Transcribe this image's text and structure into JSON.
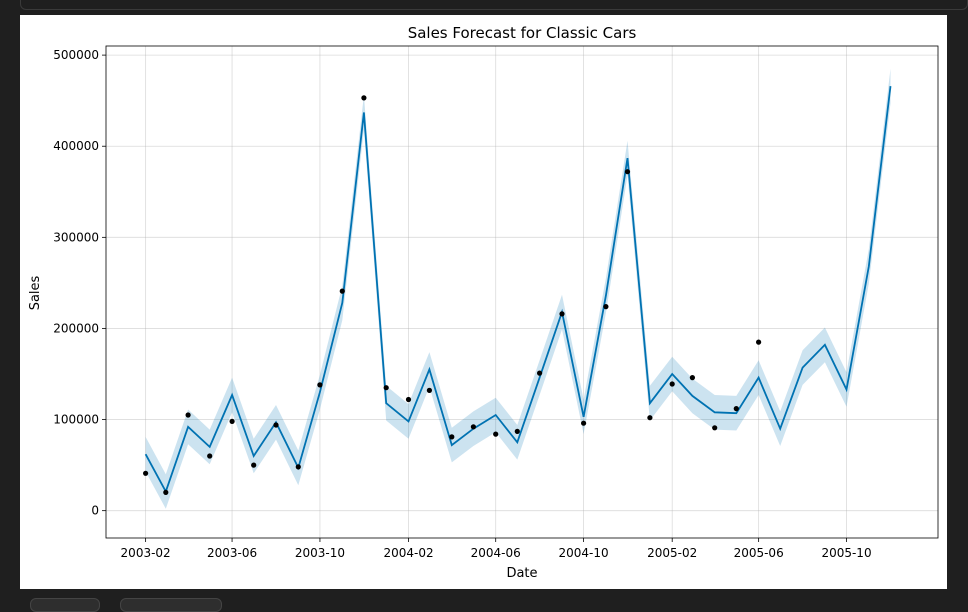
{
  "chart_data": {
    "type": "line",
    "title": "Sales Forecast for Classic Cars",
    "xlabel": "Date",
    "ylabel": "Sales",
    "xlim": [
      "2002-12-08",
      "2006-02-05"
    ],
    "ylim": [
      -30000,
      510000
    ],
    "x_ticks": [
      "2003-02",
      "2003-06",
      "2003-10",
      "2004-02",
      "2004-06",
      "2004-10",
      "2005-02",
      "2005-06",
      "2005-10"
    ],
    "y_ticks": [
      0,
      100000,
      200000,
      300000,
      400000,
      500000
    ],
    "y_tick_labels": [
      "0",
      "100000",
      "200000",
      "300000",
      "400000",
      "500000"
    ],
    "grid": true,
    "colors": {
      "forecast_line": "#0072b2",
      "uncertainty_band": "#0072b2",
      "observed_points": "#000000"
    },
    "forecast": {
      "x": [
        "2003-02-01",
        "2003-03-01",
        "2003-04-01",
        "2003-05-01",
        "2003-06-01",
        "2003-07-01",
        "2003-08-01",
        "2003-09-01",
        "2003-10-01",
        "2003-11-01",
        "2003-12-01",
        "2004-01-01",
        "2004-02-01",
        "2004-03-01",
        "2004-04-01",
        "2004-05-01",
        "2004-06-01",
        "2004-07-01",
        "2004-08-01",
        "2004-09-01",
        "2004-10-01",
        "2004-11-01",
        "2004-12-01",
        "2005-01-01",
        "2005-02-01",
        "2005-03-01",
        "2005-04-01",
        "2005-05-01",
        "2005-06-01",
        "2005-07-01",
        "2005-08-01",
        "2005-09-01",
        "2005-10-01",
        "2005-11-01",
        "2005-12-01"
      ],
      "yhat": [
        62000,
        21000,
        92000,
        70000,
        127000,
        60000,
        97000,
        47000,
        130000,
        228000,
        437000,
        118000,
        98000,
        155000,
        72000,
        90000,
        105000,
        75000,
        146000,
        218000,
        103000,
        236000,
        387000,
        118000,
        150000,
        126000,
        108000,
        107000,
        146000,
        90000,
        157000,
        182000,
        133000,
        268000,
        466000
      ],
      "yhat_lower": [
        43000,
        2000,
        73000,
        51000,
        108000,
        41000,
        78000,
        28000,
        111000,
        209000,
        418000,
        99000,
        79000,
        136000,
        53000,
        71000,
        86000,
        56000,
        127000,
        199000,
        84000,
        217000,
        368000,
        99000,
        131000,
        107000,
        89000,
        88000,
        127000,
        71000,
        138000,
        163000,
        114000,
        249000,
        447000
      ],
      "yhat_upper": [
        81000,
        40000,
        111000,
        89000,
        146000,
        79000,
        116000,
        66000,
        149000,
        247000,
        456000,
        137000,
        117000,
        174000,
        91000,
        109000,
        124000,
        94000,
        165000,
        237000,
        122000,
        255000,
        406000,
        137000,
        169000,
        145000,
        127000,
        126000,
        165000,
        109000,
        176000,
        201000,
        152000,
        287000,
        485000
      ]
    },
    "observed": {
      "x": [
        "2003-02-01",
        "2003-03-01",
        "2003-04-01",
        "2003-05-01",
        "2003-06-01",
        "2003-07-01",
        "2003-08-01",
        "2003-09-01",
        "2003-10-01",
        "2003-11-01",
        "2003-12-01",
        "2004-01-01",
        "2004-02-01",
        "2004-03-01",
        "2004-04-01",
        "2004-05-01",
        "2004-06-01",
        "2004-07-01",
        "2004-08-01",
        "2004-09-01",
        "2004-10-01",
        "2004-11-01",
        "2004-12-01",
        "2005-01-01",
        "2005-02-01",
        "2005-03-01",
        "2005-04-01",
        "2005-05-01",
        "2005-06-01"
      ],
      "y": [
        41000,
        20000,
        105000,
        60000,
        98000,
        50000,
        94000,
        48000,
        138000,
        241000,
        453000,
        135000,
        122000,
        132000,
        81000,
        92000,
        84000,
        87000,
        151000,
        216000,
        96000,
        224000,
        372000,
        102000,
        139000,
        146000,
        91000,
        112000,
        185000
      ]
    }
  }
}
